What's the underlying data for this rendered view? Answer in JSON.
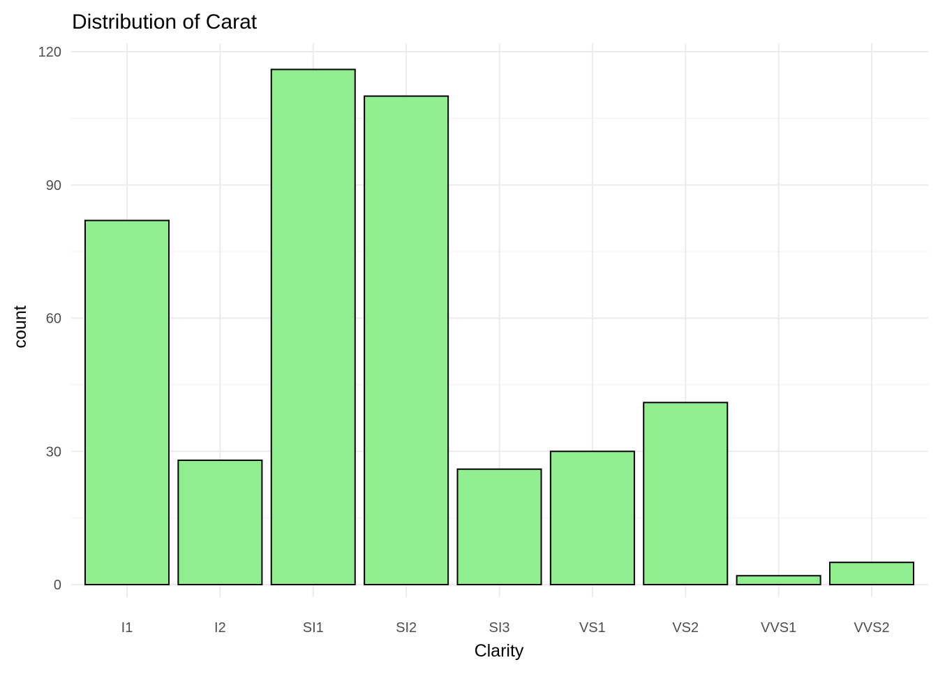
{
  "chart_data": {
    "type": "bar",
    "title": "Distribution of Carat",
    "xlabel": "Clarity",
    "ylabel": "count",
    "categories": [
      "I1",
      "I2",
      "SI1",
      "SI2",
      "SI3",
      "VS1",
      "VS2",
      "VVS1",
      "VVS2"
    ],
    "values": [
      82,
      28,
      116,
      110,
      26,
      30,
      41,
      2,
      5
    ],
    "ylim": [
      0,
      120
    ],
    "yticks": [
      0,
      30,
      60,
      90,
      120
    ],
    "grid": true,
    "legend": "none",
    "colors": {
      "bar_fill": "#90ee90",
      "bar_outline": "#000000",
      "grid": "#ebebeb"
    }
  }
}
